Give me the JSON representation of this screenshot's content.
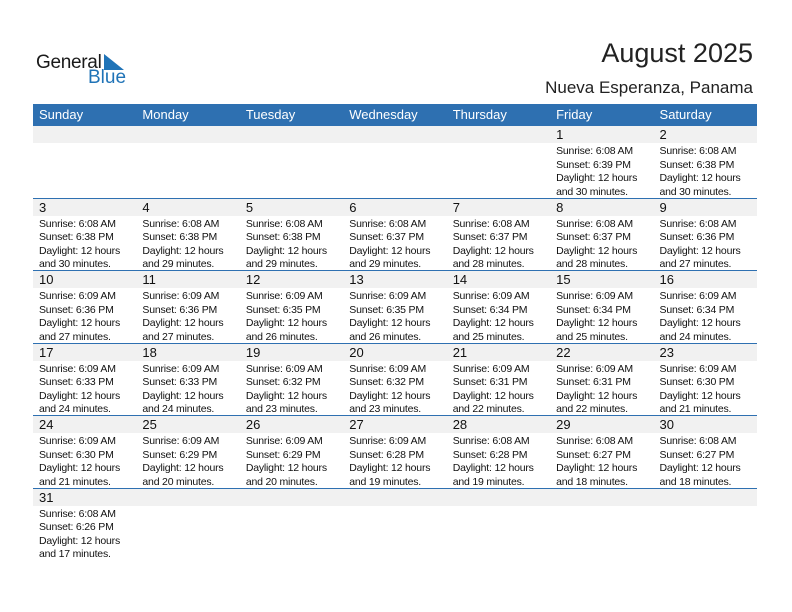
{
  "logo": {
    "text_general": "General",
    "text_blue": "Blue"
  },
  "title": "August 2025",
  "location": "Nueva Esperanza, Panama",
  "colors": {
    "header": "#2e70b1",
    "date_bar": "#f1f1f1",
    "logo_blue": "#1f73b7"
  },
  "weekdays": [
    "Sunday",
    "Monday",
    "Tuesday",
    "Wednesday",
    "Thursday",
    "Friday",
    "Saturday"
  ],
  "weeks": [
    [
      null,
      null,
      null,
      null,
      null,
      {
        "day": "1",
        "lines": [
          "Sunrise: 6:08 AM",
          "Sunset: 6:39 PM",
          "Daylight: 12 hours",
          "and 30 minutes."
        ]
      },
      {
        "day": "2",
        "lines": [
          "Sunrise: 6:08 AM",
          "Sunset: 6:38 PM",
          "Daylight: 12 hours",
          "and 30 minutes."
        ]
      }
    ],
    [
      {
        "day": "3",
        "lines": [
          "Sunrise: 6:08 AM",
          "Sunset: 6:38 PM",
          "Daylight: 12 hours",
          "and 30 minutes."
        ]
      },
      {
        "day": "4",
        "lines": [
          "Sunrise: 6:08 AM",
          "Sunset: 6:38 PM",
          "Daylight: 12 hours",
          "and 29 minutes."
        ]
      },
      {
        "day": "5",
        "lines": [
          "Sunrise: 6:08 AM",
          "Sunset: 6:38 PM",
          "Daylight: 12 hours",
          "and 29 minutes."
        ]
      },
      {
        "day": "6",
        "lines": [
          "Sunrise: 6:08 AM",
          "Sunset: 6:37 PM",
          "Daylight: 12 hours",
          "and 29 minutes."
        ]
      },
      {
        "day": "7",
        "lines": [
          "Sunrise: 6:08 AM",
          "Sunset: 6:37 PM",
          "Daylight: 12 hours",
          "and 28 minutes."
        ]
      },
      {
        "day": "8",
        "lines": [
          "Sunrise: 6:08 AM",
          "Sunset: 6:37 PM",
          "Daylight: 12 hours",
          "and 28 minutes."
        ]
      },
      {
        "day": "9",
        "lines": [
          "Sunrise: 6:08 AM",
          "Sunset: 6:36 PM",
          "Daylight: 12 hours",
          "and 27 minutes."
        ]
      }
    ],
    [
      {
        "day": "10",
        "lines": [
          "Sunrise: 6:09 AM",
          "Sunset: 6:36 PM",
          "Daylight: 12 hours",
          "and 27 minutes."
        ]
      },
      {
        "day": "11",
        "lines": [
          "Sunrise: 6:09 AM",
          "Sunset: 6:36 PM",
          "Daylight: 12 hours",
          "and 27 minutes."
        ]
      },
      {
        "day": "12",
        "lines": [
          "Sunrise: 6:09 AM",
          "Sunset: 6:35 PM",
          "Daylight: 12 hours",
          "and 26 minutes."
        ]
      },
      {
        "day": "13",
        "lines": [
          "Sunrise: 6:09 AM",
          "Sunset: 6:35 PM",
          "Daylight: 12 hours",
          "and 26 minutes."
        ]
      },
      {
        "day": "14",
        "lines": [
          "Sunrise: 6:09 AM",
          "Sunset: 6:34 PM",
          "Daylight: 12 hours",
          "and 25 minutes."
        ]
      },
      {
        "day": "15",
        "lines": [
          "Sunrise: 6:09 AM",
          "Sunset: 6:34 PM",
          "Daylight: 12 hours",
          "and 25 minutes."
        ]
      },
      {
        "day": "16",
        "lines": [
          "Sunrise: 6:09 AM",
          "Sunset: 6:34 PM",
          "Daylight: 12 hours",
          "and 24 minutes."
        ]
      }
    ],
    [
      {
        "day": "17",
        "lines": [
          "Sunrise: 6:09 AM",
          "Sunset: 6:33 PM",
          "Daylight: 12 hours",
          "and 24 minutes."
        ]
      },
      {
        "day": "18",
        "lines": [
          "Sunrise: 6:09 AM",
          "Sunset: 6:33 PM",
          "Daylight: 12 hours",
          "and 24 minutes."
        ]
      },
      {
        "day": "19",
        "lines": [
          "Sunrise: 6:09 AM",
          "Sunset: 6:32 PM",
          "Daylight: 12 hours",
          "and 23 minutes."
        ]
      },
      {
        "day": "20",
        "lines": [
          "Sunrise: 6:09 AM",
          "Sunset: 6:32 PM",
          "Daylight: 12 hours",
          "and 23 minutes."
        ]
      },
      {
        "day": "21",
        "lines": [
          "Sunrise: 6:09 AM",
          "Sunset: 6:31 PM",
          "Daylight: 12 hours",
          "and 22 minutes."
        ]
      },
      {
        "day": "22",
        "lines": [
          "Sunrise: 6:09 AM",
          "Sunset: 6:31 PM",
          "Daylight: 12 hours",
          "and 22 minutes."
        ]
      },
      {
        "day": "23",
        "lines": [
          "Sunrise: 6:09 AM",
          "Sunset: 6:30 PM",
          "Daylight: 12 hours",
          "and 21 minutes."
        ]
      }
    ],
    [
      {
        "day": "24",
        "lines": [
          "Sunrise: 6:09 AM",
          "Sunset: 6:30 PM",
          "Daylight: 12 hours",
          "and 21 minutes."
        ]
      },
      {
        "day": "25",
        "lines": [
          "Sunrise: 6:09 AM",
          "Sunset: 6:29 PM",
          "Daylight: 12 hours",
          "and 20 minutes."
        ]
      },
      {
        "day": "26",
        "lines": [
          "Sunrise: 6:09 AM",
          "Sunset: 6:29 PM",
          "Daylight: 12 hours",
          "and 20 minutes."
        ]
      },
      {
        "day": "27",
        "lines": [
          "Sunrise: 6:09 AM",
          "Sunset: 6:28 PM",
          "Daylight: 12 hours",
          "and 19 minutes."
        ]
      },
      {
        "day": "28",
        "lines": [
          "Sunrise: 6:08 AM",
          "Sunset: 6:28 PM",
          "Daylight: 12 hours",
          "and 19 minutes."
        ]
      },
      {
        "day": "29",
        "lines": [
          "Sunrise: 6:08 AM",
          "Sunset: 6:27 PM",
          "Daylight: 12 hours",
          "and 18 minutes."
        ]
      },
      {
        "day": "30",
        "lines": [
          "Sunrise: 6:08 AM",
          "Sunset: 6:27 PM",
          "Daylight: 12 hours",
          "and 18 minutes."
        ]
      }
    ],
    [
      {
        "day": "31",
        "lines": [
          "Sunrise: 6:08 AM",
          "Sunset: 6:26 PM",
          "Daylight: 12 hours",
          "and 17 minutes."
        ]
      },
      null,
      null,
      null,
      null,
      null,
      null
    ]
  ]
}
